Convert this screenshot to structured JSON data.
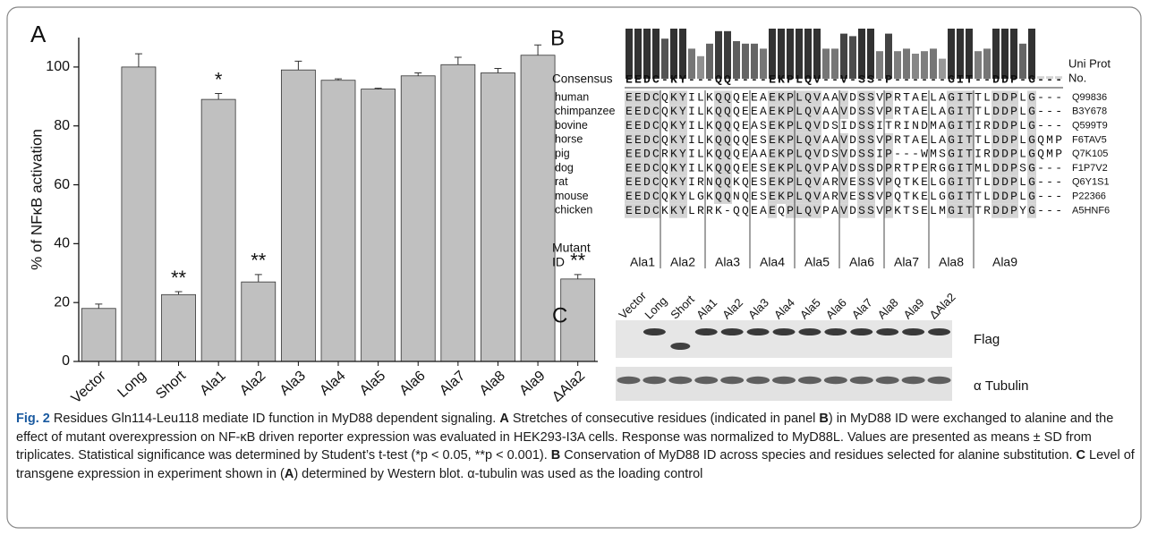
{
  "chart_data": {
    "type": "bar",
    "label": "A",
    "ylabel": "% of NFκB activation",
    "categories": [
      "Vector",
      "Long",
      "Short",
      "Ala1",
      "Ala2",
      "Ala3",
      "Ala4",
      "Ala5",
      "Ala6",
      "Ala7",
      "Ala8",
      "Ala9",
      "ΔAla2"
    ],
    "values": [
      18,
      100,
      22.7,
      89,
      27,
      99,
      95.5,
      92.5,
      97,
      100.8,
      98,
      104,
      28
    ],
    "errors": [
      1.5,
      4.5,
      1,
      2,
      2.5,
      3,
      0.5,
      0.3,
      1,
      2.5,
      1.5,
      3.5,
      1.5
    ],
    "significance": [
      null,
      null,
      "**",
      "*",
      "**",
      null,
      null,
      null,
      null,
      null,
      null,
      null,
      "**"
    ],
    "color": "#c0c0c0",
    "ylim": [
      0,
      110
    ],
    "yticks": [
      0,
      20,
      40,
      60,
      80,
      100
    ]
  },
  "alignment": {
    "label": "B",
    "consensus_label": "Consensus",
    "uniprot_label": [
      "Uni Prot",
      "No."
    ],
    "consensus": "EEDC-KY---QQ----EKPLQV--V-SS-P------GIT--DDP-G---",
    "conservation": [
      1,
      1,
      1,
      1,
      0.8,
      1,
      1,
      0.6,
      0.45,
      0.7,
      0.95,
      0.95,
      0.75,
      0.7,
      0.7,
      0.6,
      1,
      1,
      1,
      1,
      1,
      1,
      0.6,
      0.6,
      0.9,
      0.85,
      1,
      1,
      0.55,
      0.9,
      0.55,
      0.6,
      0.5,
      0.55,
      0.6,
      0.4,
      1,
      1,
      1,
      0.55,
      0.6,
      1,
      1,
      1,
      0.7,
      1,
      0.05,
      0.05,
      0.05
    ],
    "rows": [
      {
        "species": "human",
        "sequence": "EEDCQKYILKQQQEEAEKPLQVAAVDSSVPRTAELAGITTLDDPLG---",
        "uniprot": "Q99836"
      },
      {
        "species": "chimpanzee",
        "sequence": "EEDCQKYILKQQQEEAEKPLQVAAVDSSVPRTAELAGITTLDDPLG---",
        "uniprot": "B3Y678"
      },
      {
        "species": "bovine",
        "sequence": "EEDCQKYILKQQQEASEKPLQVDSIDSSITRINDMAGITIRDDPLG---",
        "uniprot": "Q599T9"
      },
      {
        "species": "horse",
        "sequence": "EEDCQKYILKQQQQESEKPLQVAAVDSSVPRTAELAGITTLDDPLGQMP",
        "uniprot": "F6TAV5"
      },
      {
        "species": "pig",
        "sequence": "EEDCRKYILKQQQEAAEKPLQVDSVDSSIP---WMSGITIRDDPLGQMP",
        "uniprot": "Q7K105"
      },
      {
        "species": "dog",
        "sequence": "EEDCQKYILKQQQEESEKPLQVPAVDSSDPRTPERGGITMLDDPSG---",
        "uniprot": "F1P7V2"
      },
      {
        "species": "rat",
        "sequence": "EEDCQKYIRNQQKQESEKPLQVARVESSVPQTKELGGITTLDDPLG---",
        "uniprot": "Q6Y1S1"
      },
      {
        "species": "mouse",
        "sequence": "EEDCQKYLGKQQNQESEKPLQVARVESSVPQTKELGGITTLDDPLG---",
        "uniprot": "P22366"
      },
      {
        "species": "chicken",
        "sequence": "EEDCKKYLRRK-QQEAEQPLQVPAVDSSVPKTSELMGITTRDDPYG---",
        "uniprot": "A5HNF6"
      }
    ],
    "mutant_label": [
      "Mutant",
      "ID"
    ],
    "mutant_ids": [
      "Ala1",
      "Ala2",
      "Ala3",
      "Ala4",
      "Ala5",
      "Ala6",
      "Ala7",
      "Ala8",
      "Ala9"
    ]
  },
  "blot": {
    "label": "C",
    "lanes": [
      "Vector",
      "Long",
      "Short",
      "Ala1",
      "Ala2",
      "Ala3",
      "Ala4",
      "Ala5",
      "Ala6",
      "Ala7",
      "Ala8",
      "Ala9",
      "ΔAla2"
    ],
    "rows": [
      "Flag",
      "α Tubulin"
    ]
  },
  "caption": {
    "segments": [
      {
        "text": "Fig. 2",
        "bold": true
      },
      {
        "text": " Residues Gln114-Leu118 mediate ID function in MyD88 dependent signaling. ",
        "bold": false
      },
      {
        "text": "A",
        "bold": true
      },
      {
        "text": " Stretches of consecutive residues (indicated in panel ",
        "bold": false
      },
      {
        "text": "B",
        "bold": true
      },
      {
        "text": ") in MyD88 ID were exchanged to alanine and the effect of mutant overexpression on NF-κB driven reporter expression was evaluated in HEK293-I3A cells. Response was normalized to MyD88L. Values are presented as means ± SD from triplicates. Statistical significance was determined by Student’s t-test (*p < 0.05, **p < 0.001). ",
        "bold": false
      },
      {
        "text": "B",
        "bold": true
      },
      {
        "text": " Conservation of MyD88 ID across species and residues selected for alanine substitution. ",
        "bold": false
      },
      {
        "text": "C",
        "bold": true
      },
      {
        "text": " Level of transgene expression in experiment shown in (",
        "bold": false
      },
      {
        "text": "A",
        "bold": true
      },
      {
        "text": ") determined by Western blot. α-tubulin was used as the loading control",
        "bold": false
      }
    ]
  }
}
